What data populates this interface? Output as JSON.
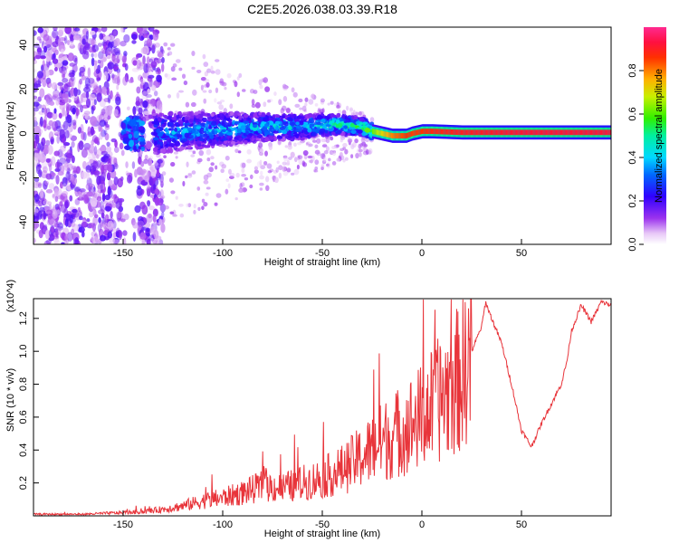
{
  "title": "C2E5.2026.038.03.39.R18",
  "colors": {
    "snr_line": "#e8343a",
    "axis": "#000000",
    "spectrogram_scale": [
      "#f4e8fa",
      "#d9a7f2",
      "#9b33ee",
      "#5d00e8",
      "#0026ff",
      "#00b4ff",
      "#00f0e0",
      "#00e86a",
      "#30f000",
      "#c8ef00",
      "#ffb000",
      "#ff5a00",
      "#ff0f20",
      "#ff2a80"
    ]
  },
  "chart_data": [
    {
      "type": "heatmap",
      "title": "C2E5.2026.038.03.39.R18",
      "xlabel": "Height of straight line (km)",
      "ylabel": "Frequency (Hz)",
      "xlim": [
        -195,
        95
      ],
      "ylim": [
        -50,
        48
      ],
      "xticks": [
        -150,
        -100,
        -50,
        0,
        50
      ],
      "yticks": [
        -40,
        -20,
        0,
        20,
        40
      ],
      "colorbar": {
        "label": "Normalized spectral amplitude",
        "range": [
          0.0,
          1.0
        ],
        "ticks": [
          0.0,
          0.2,
          0.4,
          0.6,
          0.8
        ]
      },
      "signal_track": {
        "heights_km": [
          -135,
          -120,
          -100,
          -80,
          -60,
          -50,
          -40,
          -30,
          -25,
          -20,
          -15,
          -10,
          -8,
          -5,
          0,
          5,
          20,
          50,
          95
        ],
        "frequency_hz": [
          0,
          1,
          2,
          3,
          3,
          4,
          4,
          3,
          1,
          0,
          -1,
          -1,
          -1,
          0,
          1,
          1,
          0.5,
          0.5,
          0.5
        ],
        "amplitude": [
          0.3,
          0.32,
          0.34,
          0.36,
          0.38,
          0.42,
          0.45,
          0.5,
          0.62,
          0.72,
          0.8,
          0.84,
          0.86,
          0.85,
          0.86,
          0.88,
          0.9,
          0.92,
          0.92
        ]
      }
    },
    {
      "type": "line",
      "xlabel": "Height of straight line (km)",
      "ylabel": "SNR (10 * v/v)",
      "y_multiplier": "(x10^4)",
      "xlim": [
        -195,
        95
      ],
      "ylim": [
        0,
        1.32
      ],
      "xticks": [
        -150,
        -100,
        -50,
        0,
        50
      ],
      "yticks": [
        0.2,
        0.4,
        0.6,
        0.8,
        1.0,
        1.2
      ],
      "series": [
        {
          "name": "SNR",
          "x": [
            -195,
            -170,
            -150,
            -140,
            -130,
            -120,
            -110,
            -100,
            -90,
            -80,
            -70,
            -60,
            -50,
            -40,
            -30,
            -20,
            -10,
            0,
            10,
            20,
            25,
            30,
            32,
            35,
            40,
            45,
            50,
            55,
            60,
            65,
            70,
            73,
            75,
            80,
            85,
            88,
            90,
            95
          ],
          "y": [
            0.01,
            0.01,
            0.02,
            0.025,
            0.04,
            0.06,
            0.09,
            0.11,
            0.14,
            0.18,
            0.17,
            0.2,
            0.23,
            0.28,
            0.36,
            0.45,
            0.52,
            0.6,
            0.72,
            0.85,
            1.0,
            1.15,
            1.3,
            1.2,
            1.05,
            0.8,
            0.52,
            0.42,
            0.56,
            0.68,
            0.8,
            0.95,
            1.12,
            1.28,
            1.18,
            1.25,
            1.3,
            1.28
          ]
        }
      ]
    }
  ]
}
